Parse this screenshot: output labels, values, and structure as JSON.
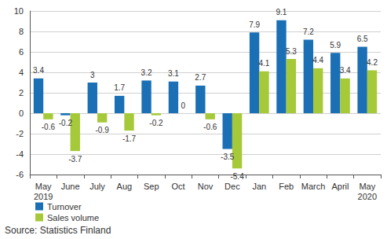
{
  "chart_data": {
    "type": "bar",
    "categories": [
      "May\n2019",
      "June",
      "July",
      "Aug",
      "Sep",
      "Oct",
      "Nov",
      "Dec",
      "Jan",
      "Feb",
      "March",
      "April",
      "May\n2020"
    ],
    "series": [
      {
        "name": "Turnover",
        "color": "#1a6fb5",
        "values": [
          3.4,
          -0.2,
          3.0,
          1.7,
          3.2,
          3.1,
          2.7,
          -3.5,
          7.9,
          9.1,
          7.2,
          5.9,
          6.5
        ]
      },
      {
        "name": "Sales volume",
        "color": "#a6c93a",
        "values": [
          -0.6,
          -3.7,
          -0.9,
          -1.7,
          -0.2,
          0.0,
          -0.6,
          -5.4,
          4.1,
          5.3,
          4.4,
          3.4,
          4.2
        ]
      }
    ],
    "ylim": [
      -6,
      10
    ],
    "yticks": [
      -6,
      -4,
      -2,
      0,
      2,
      4,
      6,
      8,
      10
    ],
    "grid": true,
    "legend": "bottom-left",
    "data_labels": true,
    "annotations": [
      "Source: Statistics Finland"
    ]
  }
}
